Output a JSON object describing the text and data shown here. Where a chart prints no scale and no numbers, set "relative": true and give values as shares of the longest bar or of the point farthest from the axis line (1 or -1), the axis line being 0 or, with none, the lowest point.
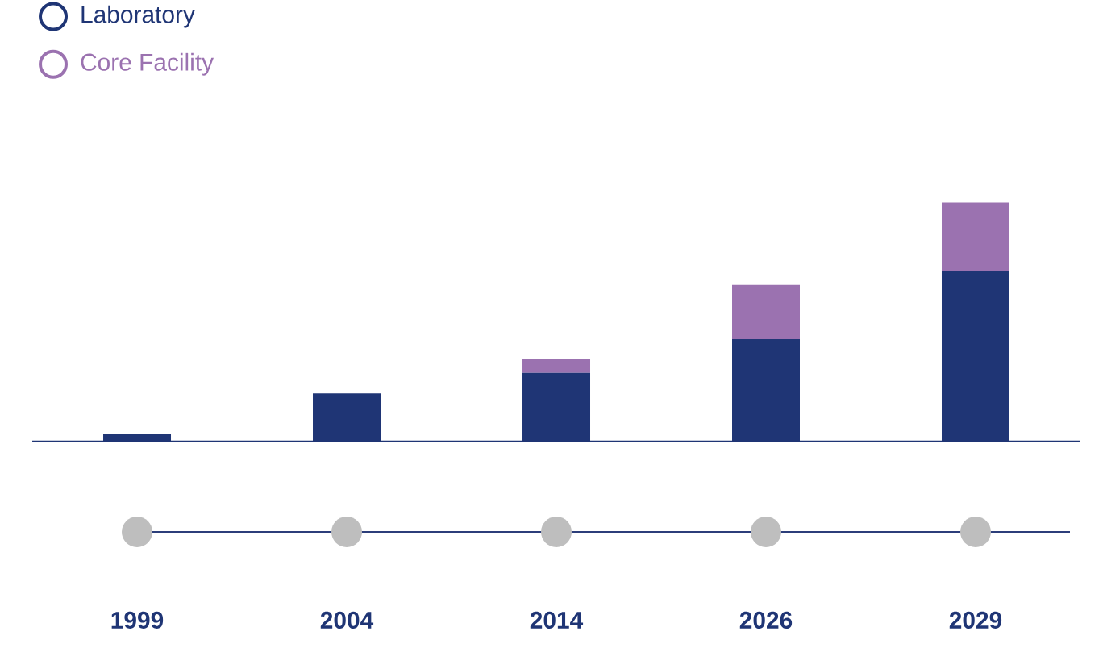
{
  "chart_data": {
    "type": "bar",
    "stacked": true,
    "relative": true,
    "categories": [
      "1999",
      "2004",
      "2014",
      "2026",
      "2029"
    ],
    "series": [
      {
        "name": "Laboratory",
        "color": "#1f3575",
        "values": [
          0.029,
          0.2,
          0.286,
          0.429,
          0.714
        ]
      },
      {
        "name": "Core Facility",
        "color": "#9b72b0",
        "values": [
          0,
          0,
          0.057,
          0.229,
          0.286
        ]
      }
    ],
    "legend": "top left"
  }
}
